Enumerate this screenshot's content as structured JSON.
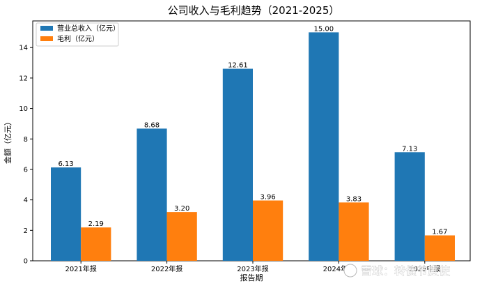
{
  "chart_data": {
    "type": "bar",
    "title": "公司收入与毛利趋势（2021-2025）",
    "xlabel": "报告期",
    "ylabel": "金额（亿元）",
    "categories": [
      "2021年报",
      "2022年报",
      "2023年报",
      "2024年报",
      "2025中报"
    ],
    "series": [
      {
        "name": "营业总收入（亿元）",
        "color": "#1f77b4",
        "values": [
          6.13,
          8.68,
          12.61,
          15.0,
          7.13
        ],
        "labels": [
          "6.13",
          "8.68",
          "12.61",
          "15.00",
          "7.13"
        ]
      },
      {
        "name": "毛利（亿元）",
        "color": "#ff7f0e",
        "values": [
          2.19,
          3.2,
          3.96,
          3.83,
          1.67
        ],
        "labels": [
          "2.19",
          "3.20",
          "3.96",
          "3.83",
          "1.67"
        ]
      }
    ],
    "ylim": [
      0,
      15.75
    ],
    "yticks": [
      0,
      2,
      4,
      6,
      8,
      10,
      12,
      14
    ],
    "ytick_labels": [
      "0",
      "2",
      "4",
      "6",
      "8",
      "10",
      "12",
      "14"
    ],
    "grid": false,
    "legend_position": "top-left"
  },
  "watermark": {
    "text": "雪球：转债节度使"
  }
}
